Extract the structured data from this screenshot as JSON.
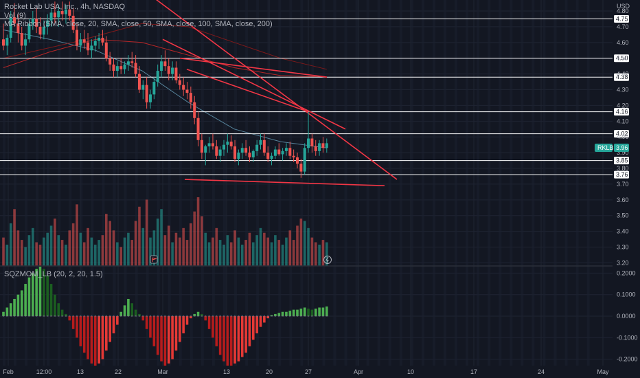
{
  "header": {
    "title": "Rocket Lab USA, Inc., 4h, NASDAQ",
    "vol": "Vol (9)",
    "ma_ribbon": "MA Ribbon (SMA, close, 20, SMA, close, 50, SMA, close, 100, SMA, close, 200)",
    "oscillator": "SQZMOM_LB (20, 2, 20, 1.5)"
  },
  "currency": "USD",
  "ticker_badge": {
    "symbol": "RKLB",
    "price": "3.96",
    "color": "#26a69a"
  },
  "colors": {
    "background": "#131722",
    "up": "#26a69a",
    "down": "#ef5350",
    "trendline": "#f23645",
    "level": "#ffffff",
    "mom_up": "#4caf50",
    "mom_down": "#b71c1c"
  },
  "chart_data": [
    {
      "type": "candlestick",
      "title": "Rocket Lab USA, Inc., 4h, NASDAQ",
      "ylabel": "USD",
      "ylim": [
        3.18,
        4.87
      ],
      "y_ticks": [
        "4.80",
        "4.70",
        "4.60",
        "4.50",
        "4.40",
        "4.30",
        "4.20",
        "4.10",
        "4.00",
        "3.90",
        "3.80",
        "3.70",
        "3.60",
        "3.50",
        "3.40",
        "3.30",
        "3.20"
      ],
      "x_ticks": [
        "Feb",
        "12:00",
        "13",
        "22",
        "Mar",
        "13",
        "20",
        "27",
        "Apr",
        "10",
        "17",
        "24",
        "May"
      ],
      "horizontal_levels": [
        "4.75",
        "4.50",
        "4.38",
        "4.16",
        "4.02",
        "3.85",
        "3.76"
      ],
      "trendlines": [
        {
          "from": [
            "Feb 19",
            4.92
          ],
          "to": [
            "Apr 3",
            3.73
          ]
        },
        {
          "from": [
            "Mar 1",
            4.62
          ],
          "to": [
            "Mar 29",
            4.05
          ]
        },
        {
          "from": [
            "Mar 5",
            4.5
          ],
          "to": [
            "Mar 28",
            4.38
          ]
        },
        {
          "from": [
            "Mar 6",
            4.43
          ],
          "to": [
            "Mar 27",
            4.16
          ]
        },
        {
          "from": [
            "Mar 10",
            3.73
          ],
          "to": [
            "Mar 31",
            3.69
          ]
        }
      ],
      "grid": true,
      "candles": [
        [
          4.62,
          4.72,
          4.55,
          4.58
        ],
        [
          4.58,
          4.65,
          4.52,
          4.63
        ],
        [
          4.63,
          4.8,
          4.6,
          4.76
        ],
        [
          4.76,
          4.85,
          4.7,
          4.72
        ],
        [
          4.72,
          4.78,
          4.6,
          4.66
        ],
        [
          4.66,
          4.7,
          4.55,
          4.58
        ],
        [
          4.58,
          4.66,
          4.52,
          4.62
        ],
        [
          4.62,
          4.75,
          4.6,
          4.72
        ],
        [
          4.72,
          4.8,
          4.68,
          4.75
        ],
        [
          4.75,
          4.82,
          4.66,
          4.7
        ],
        [
          4.7,
          4.76,
          4.62,
          4.65
        ],
        [
          4.65,
          4.74,
          4.62,
          4.7
        ],
        [
          4.7,
          4.78,
          4.65,
          4.74
        ],
        [
          4.74,
          4.82,
          4.7,
          4.79
        ],
        [
          4.79,
          4.86,
          4.72,
          4.76
        ],
        [
          4.76,
          4.84,
          4.7,
          4.8
        ],
        [
          4.8,
          4.86,
          4.74,
          4.78
        ],
        [
          4.78,
          4.84,
          4.72,
          4.81
        ],
        [
          4.81,
          4.86,
          4.74,
          4.77
        ],
        [
          4.77,
          4.82,
          4.66,
          4.68
        ],
        [
          4.68,
          4.72,
          4.55,
          4.58
        ],
        [
          4.58,
          4.66,
          4.54,
          4.62
        ],
        [
          4.62,
          4.68,
          4.56,
          4.6
        ],
        [
          4.6,
          4.66,
          4.52,
          4.55
        ],
        [
          4.55,
          4.62,
          4.5,
          4.58
        ],
        [
          4.58,
          4.64,
          4.54,
          4.61
        ],
        [
          4.61,
          4.66,
          4.56,
          4.63
        ],
        [
          4.63,
          4.68,
          4.58,
          4.6
        ],
        [
          4.6,
          4.64,
          4.48,
          4.5
        ],
        [
          4.5,
          4.54,
          4.42,
          4.46
        ],
        [
          4.46,
          4.5,
          4.38,
          4.42
        ],
        [
          4.42,
          4.48,
          4.38,
          4.45
        ],
        [
          4.45,
          4.5,
          4.4,
          4.43
        ],
        [
          4.43,
          4.48,
          4.4,
          4.46
        ],
        [
          4.46,
          4.52,
          4.42,
          4.48
        ],
        [
          4.48,
          4.54,
          4.44,
          4.47
        ],
        [
          4.47,
          4.52,
          4.38,
          4.4
        ],
        [
          4.4,
          4.45,
          4.28,
          4.3
        ],
        [
          4.3,
          4.36,
          4.24,
          4.33
        ],
        [
          4.33,
          4.38,
          4.18,
          4.22
        ],
        [
          4.22,
          4.3,
          4.18,
          4.27
        ],
        [
          4.27,
          4.38,
          4.24,
          4.35
        ],
        [
          4.35,
          4.46,
          4.32,
          4.42
        ],
        [
          4.42,
          4.52,
          4.38,
          4.48
        ],
        [
          4.48,
          4.55,
          4.42,
          4.45
        ],
        [
          4.45,
          4.5,
          4.36,
          4.4
        ],
        [
          4.4,
          4.48,
          4.36,
          4.44
        ],
        [
          4.44,
          4.48,
          4.34,
          4.36
        ],
        [
          4.36,
          4.4,
          4.3,
          4.33
        ],
        [
          4.33,
          4.38,
          4.26,
          4.3
        ],
        [
          4.3,
          4.35,
          4.24,
          4.28
        ],
        [
          4.28,
          4.32,
          4.18,
          4.22
        ],
        [
          4.22,
          4.26,
          4.08,
          4.12
        ],
        [
          4.12,
          4.16,
          3.94,
          3.98
        ],
        [
          3.98,
          4.02,
          3.86,
          3.9
        ],
        [
          3.9,
          3.95,
          3.82,
          3.94
        ],
        [
          3.94,
          4.0,
          3.9,
          3.96
        ],
        [
          3.96,
          4.02,
          3.92,
          3.94
        ],
        [
          3.94,
          3.98,
          3.86,
          3.88
        ],
        [
          3.88,
          3.94,
          3.84,
          3.92
        ],
        [
          3.92,
          3.98,
          3.88,
          3.95
        ],
        [
          3.95,
          4.02,
          3.9,
          3.97
        ],
        [
          3.97,
          4.01,
          3.92,
          3.94
        ],
        [
          3.94,
          3.98,
          3.84,
          3.86
        ],
        [
          3.86,
          3.92,
          3.82,
          3.9
        ],
        [
          3.9,
          3.96,
          3.86,
          3.93
        ],
        [
          3.93,
          3.98,
          3.88,
          3.9
        ],
        [
          3.9,
          3.94,
          3.84,
          3.87
        ],
        [
          3.87,
          3.92,
          3.84,
          3.91
        ],
        [
          3.91,
          3.98,
          3.88,
          3.95
        ],
        [
          3.95,
          4.02,
          3.92,
          3.98
        ],
        [
          3.98,
          4.02,
          3.88,
          3.9
        ],
        [
          3.9,
          3.94,
          3.84,
          3.86
        ],
        [
          3.86,
          3.9,
          3.82,
          3.88
        ],
        [
          3.88,
          3.94,
          3.86,
          3.92
        ],
        [
          3.92,
          3.96,
          3.88,
          3.89
        ],
        [
          3.89,
          3.93,
          3.85,
          3.91
        ],
        [
          3.91,
          3.96,
          3.88,
          3.93
        ],
        [
          3.93,
          3.97,
          3.86,
          3.88
        ],
        [
          3.88,
          3.92,
          3.84,
          3.87
        ],
        [
          3.87,
          3.9,
          3.8,
          3.83
        ],
        [
          3.83,
          3.86,
          3.74,
          3.78
        ],
        [
          3.78,
          3.96,
          3.76,
          3.93
        ],
        [
          3.93,
          4.16,
          3.9,
          3.99
        ],
        [
          3.99,
          4.02,
          3.9,
          3.94
        ],
        [
          3.94,
          3.98,
          3.88,
          3.91
        ],
        [
          3.91,
          3.98,
          3.88,
          3.96
        ],
        [
          3.96,
          4.0,
          3.9,
          3.93
        ],
        [
          3.93,
          3.99,
          3.9,
          3.96
        ]
      ],
      "ma_ribbon": [
        {
          "name": "20",
          "color": "#5d8fa8",
          "from": [
            4.68,
            "Feb"
          ],
          "to": [
            3.93,
            "Mar 29"
          ]
        },
        {
          "name": "50",
          "color": "#c62828",
          "from": [
            4.44,
            "Feb"
          ],
          "to": [
            4.38,
            "Mar 29"
          ]
        },
        {
          "name": "100",
          "color": "#8b1a1a",
          "from": [
            4.55,
            "Feb"
          ],
          "to": [
            4.4,
            "Mar 29"
          ]
        }
      ]
    },
    {
      "type": "bar",
      "title": "Vol (9)",
      "note": "volume histogram over price pane, green up / red down bars",
      "values": [
        1.2,
        0.9,
        1.8,
        2.4,
        1.5,
        1.1,
        0.8,
        1.3,
        1.6,
        1.0,
        0.9,
        1.2,
        1.4,
        1.7,
        2.0,
        1.3,
        1.1,
        0.9,
        1.5,
        1.8,
        2.6,
        1.4,
        1.0,
        1.6,
        1.2,
        0.9,
        1.1,
        1.3,
        2.2,
        1.9,
        1.5,
        1.0,
        0.8,
        1.2,
        1.4,
        1.1,
        1.9,
        2.5,
        1.6,
        2.8,
        1.2,
        1.5,
        2.0,
        2.4,
        1.3,
        1.7,
        1.0,
        1.4,
        1.2,
        1.6,
        1.1,
        1.8,
        2.3,
        2.9,
        2.1,
        1.4,
        1.0,
        1.2,
        1.6,
        1.1,
        0.9,
        1.3,
        1.0,
        1.5,
        1.2,
        0.9,
        1.1,
        1.4,
        1.0,
        1.3,
        1.6,
        1.4,
        1.2,
        1.0,
        1.3,
        1.1,
        0.9,
        1.2,
        1.5,
        1.1,
        1.7,
        2.0,
        1.9,
        1.6,
        1.2,
        1.0,
        0.9,
        1.1,
        1.0
      ]
    },
    {
      "type": "bar",
      "title": "SQZMOM_LB (20, 2, 20, 1.5)",
      "ylim": [
        -0.23,
        0.23
      ],
      "y_ticks": [
        "0.2000",
        "0.1000",
        "0.0000",
        "-0.1000",
        "-0.2000"
      ],
      "values": [
        0.02,
        0.04,
        0.06,
        0.08,
        0.1,
        0.12,
        0.15,
        0.18,
        0.2,
        0.22,
        0.23,
        0.22,
        0.19,
        0.15,
        0.1,
        0.06,
        0.03,
        0.01,
        -0.02,
        -0.06,
        -0.1,
        -0.14,
        -0.17,
        -0.2,
        -0.22,
        -0.23,
        -0.22,
        -0.2,
        -0.16,
        -0.12,
        -0.08,
        -0.04,
        0.02,
        0.05,
        0.08,
        0.06,
        0.03,
        0.01,
        -0.02,
        -0.06,
        -0.1,
        -0.14,
        -0.18,
        -0.21,
        -0.23,
        -0.22,
        -0.2,
        -0.16,
        -0.12,
        -0.08,
        -0.04,
        -0.01,
        0.01,
        0.02,
        0.01,
        -0.02,
        -0.06,
        -0.1,
        -0.14,
        -0.18,
        -0.21,
        -0.23,
        -0.23,
        -0.22,
        -0.21,
        -0.19,
        -0.17,
        -0.14,
        -0.11,
        -0.08,
        -0.05,
        -0.03,
        -0.01,
        0.005,
        0.01,
        0.015,
        0.02,
        0.02,
        0.025,
        0.03,
        0.03,
        0.035,
        0.04,
        0.035,
        0.03,
        0.035,
        0.04,
        0.04,
        0.045
      ]
    }
  ]
}
